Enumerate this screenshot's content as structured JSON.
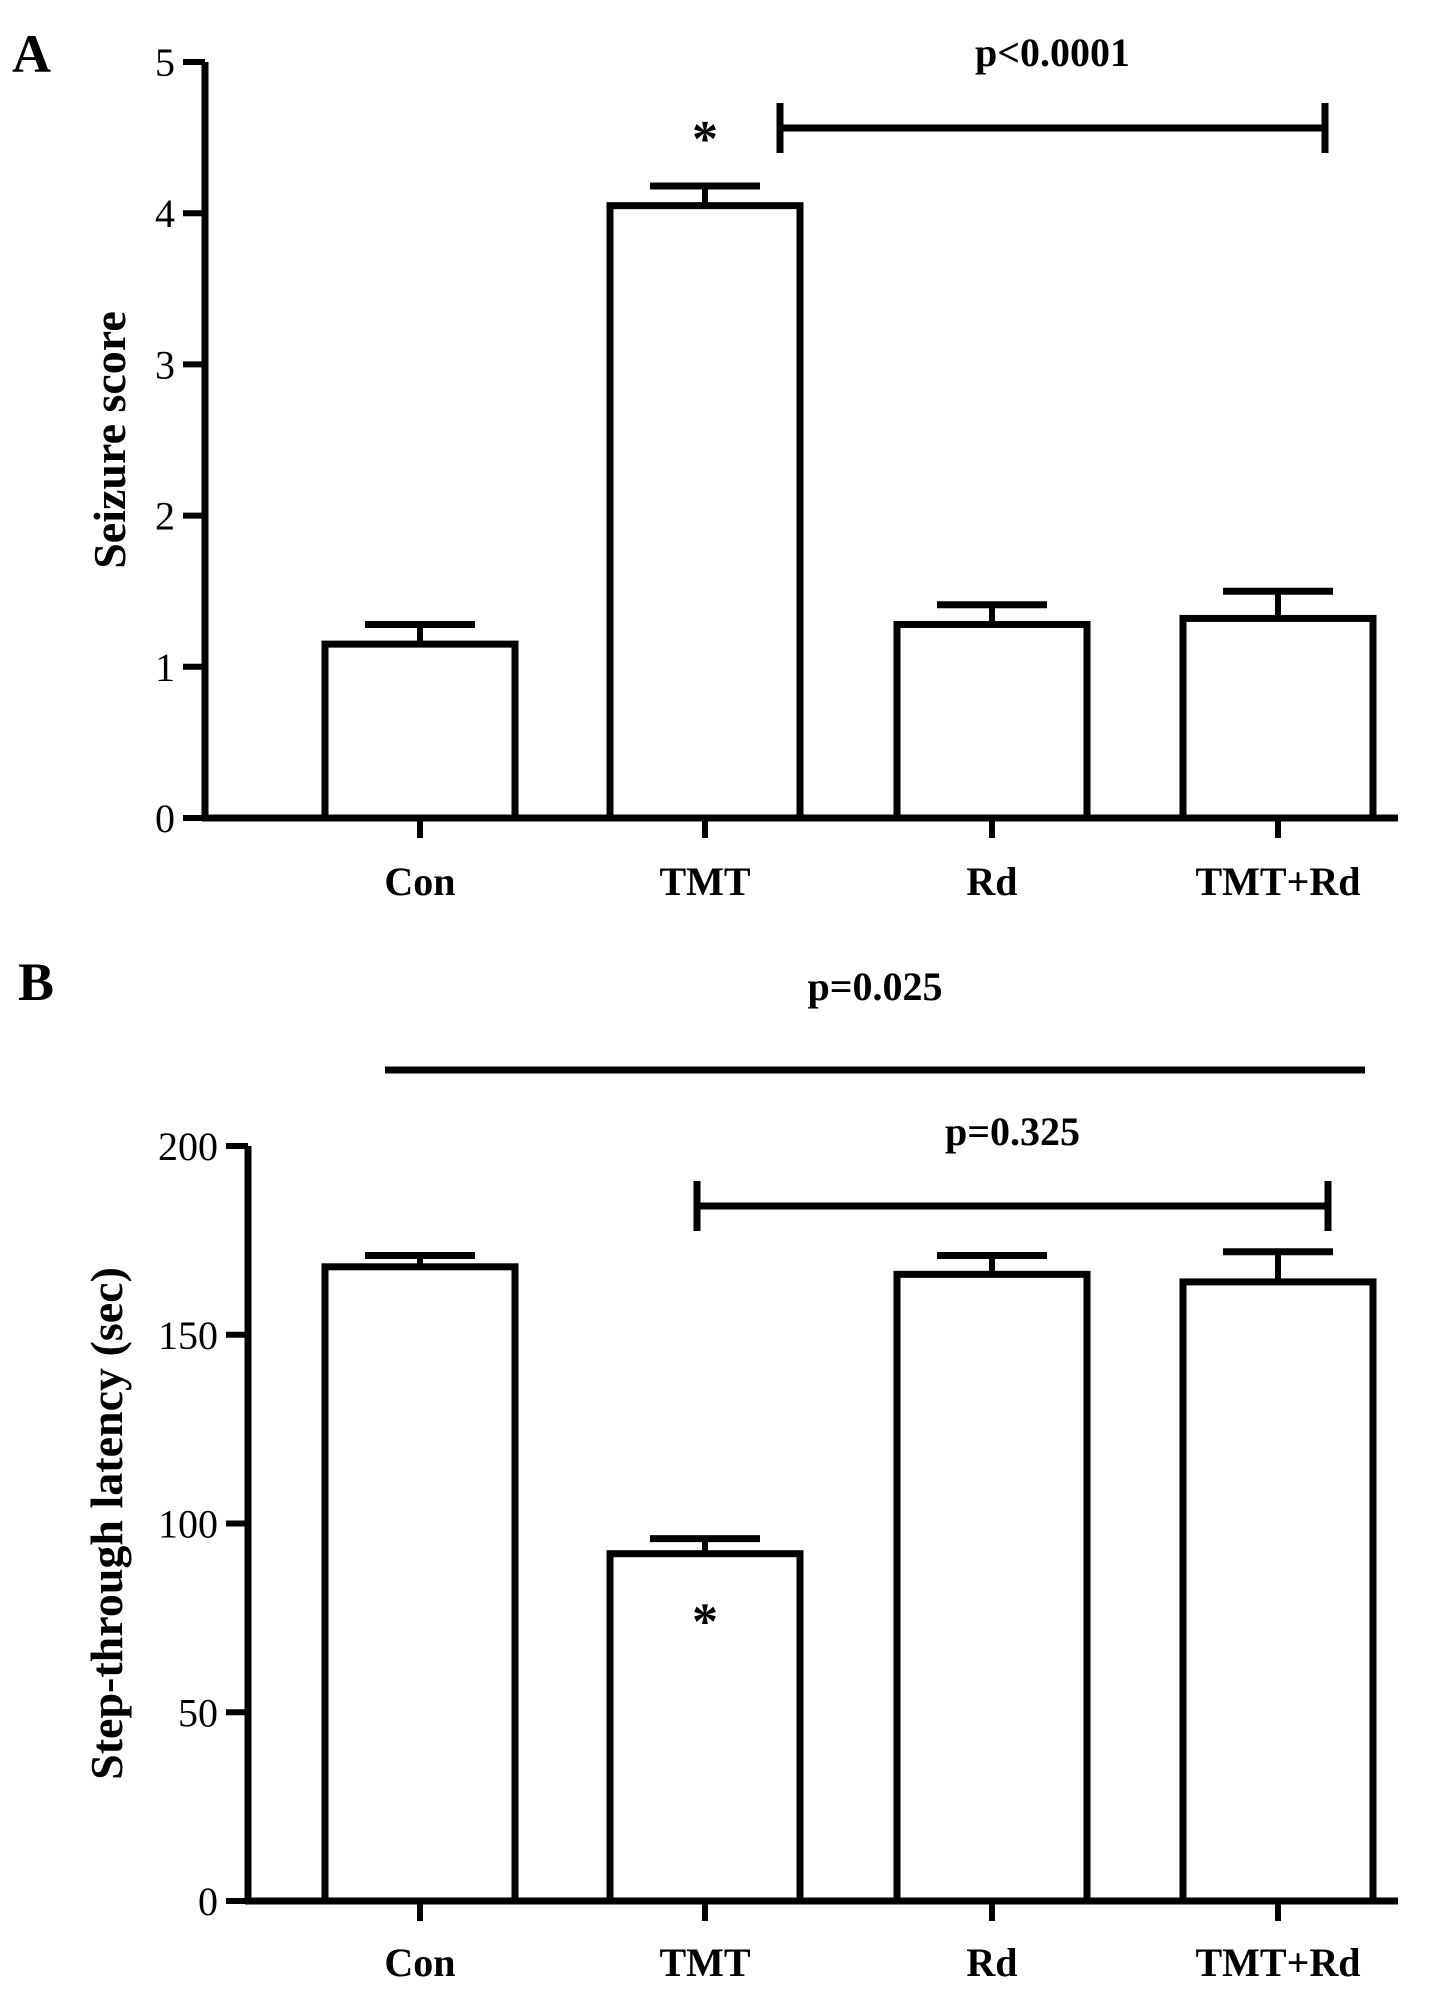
{
  "chart_data": [
    {
      "type": "bar",
      "panel_label": "A",
      "categories": [
        "Con",
        "TMT",
        "Rd",
        "TMT+Rd"
      ],
      "values": [
        1.15,
        4.05,
        1.28,
        1.32
      ],
      "errors": [
        0.13,
        0.13,
        0.13,
        0.18
      ],
      "ylabel": "Seizure score",
      "xlabel": "",
      "ylim": [
        0,
        5
      ],
      "yticks": [
        "0",
        "1",
        "2",
        "3",
        "4",
        "5"
      ],
      "grid": false,
      "significance_markers": [
        {
          "category": "TMT",
          "text": "*"
        }
      ],
      "comparisons": [
        {
          "from": "TMT",
          "to": "TMT+Rd",
          "label": "p<0.0001"
        }
      ]
    },
    {
      "type": "bar",
      "panel_label": "B",
      "categories": [
        "Con",
        "TMT",
        "Rd",
        "TMT+Rd"
      ],
      "values": [
        168,
        92,
        166,
        164
      ],
      "errors": [
        3,
        4,
        5,
        8
      ],
      "ylabel": "Step-through latency (sec)",
      "xlabel": "",
      "ylim": [
        0,
        200
      ],
      "yticks": [
        "0",
        "50",
        "100",
        "150",
        "200"
      ],
      "grid": false,
      "significance_markers": [
        {
          "category": "TMT",
          "text": "*"
        }
      ],
      "comparisons": [
        {
          "from": "Con",
          "to": "TMT+Rd",
          "label": "p=0.025"
        },
        {
          "from": "TMT",
          "to": "TMT+Rd",
          "label": "p=0.325"
        }
      ]
    }
  ]
}
